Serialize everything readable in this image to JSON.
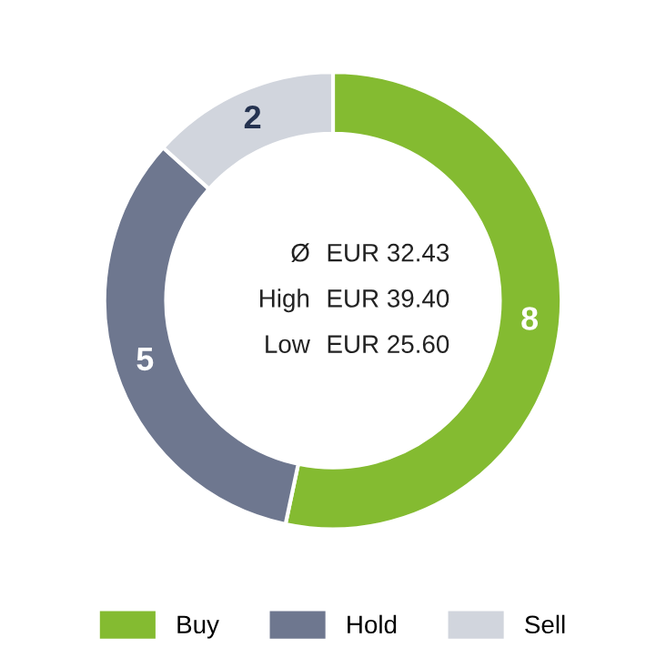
{
  "chart_data": {
    "type": "donut",
    "categories": [
      "Buy",
      "Hold",
      "Sell"
    ],
    "values": [
      8,
      5,
      2
    ],
    "colors": [
      "#84bb31",
      "#6e778f",
      "#d1d5dd"
    ],
    "data_labels": true,
    "legend": "bottom",
    "annotations": [
      "Ø EUR 32.43",
      "High EUR 39.40",
      "Low EUR 25.60"
    ]
  }
}
